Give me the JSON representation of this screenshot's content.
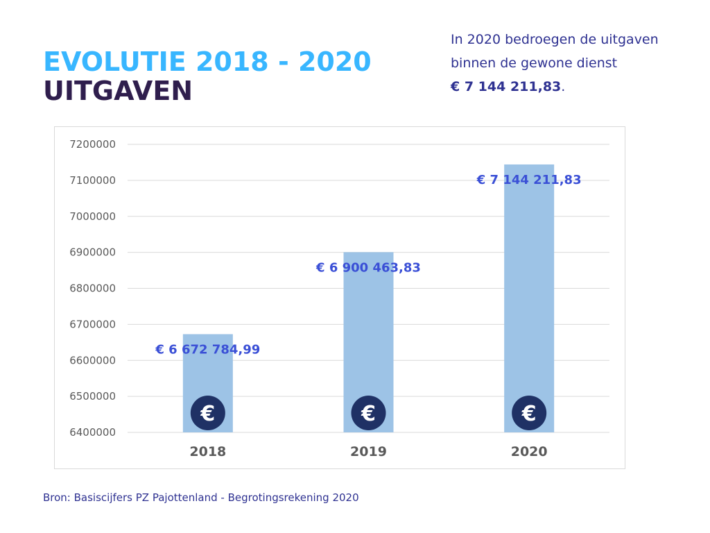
{
  "title": {
    "line1": "EVOLUTIE 2018 - 2020",
    "line2": "UITGAVEN"
  },
  "note": {
    "line1": "In 2020 bedroegen de uitgaven",
    "line2": "binnen de gewone dienst",
    "amount": "€ 7 144 211,83",
    "suffix": "."
  },
  "source": "Bron: Basiscijfers PZ Pajottenland - Begrotingsrekening 2020",
  "colors": {
    "title_accent": "#38b6ff",
    "title_dark": "#2f1e4d",
    "bar": "#9dc3e6",
    "data_label": "#3a4fd6",
    "euro_badge": "#1f3165",
    "text_blue": "#2e3191"
  },
  "chart_data": {
    "type": "bar",
    "categories": [
      "2018",
      "2019",
      "2020"
    ],
    "values": [
      6672784.99,
      6900463.83,
      7144211.83
    ],
    "data_labels": [
      "€ 6 672 784,99",
      "€ 6 900 463,83",
      "€ 7 144 211,83"
    ],
    "yticks": [
      "6400000",
      "6500000",
      "6600000",
      "6700000",
      "6800000",
      "6900000",
      "7000000",
      "7100000",
      "7200000"
    ],
    "ylim": [
      6400000,
      7200000
    ],
    "grid": true,
    "badge_icon": "euro-icon",
    "badge_symbol": "€"
  }
}
